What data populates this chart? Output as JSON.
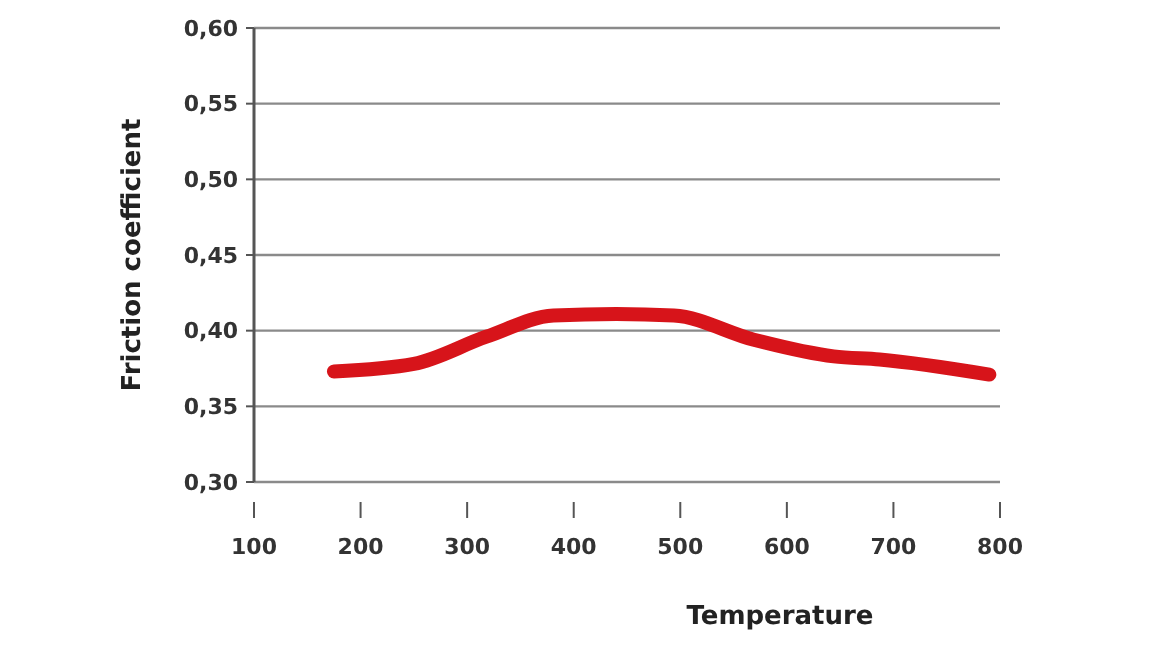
{
  "chart_data": {
    "type": "line",
    "xlabel": "Temperature",
    "ylabel": "Friction coefficient",
    "x": [
      175,
      250,
      318,
      381,
      440,
      494,
      569,
      644,
      687,
      790
    ],
    "series": [
      {
        "color": "#d7141a",
        "values": [
          0.373,
          0.378,
          0.396,
          0.41,
          0.411,
          0.41,
          0.394,
          0.383,
          0.381,
          0.371
        ]
      }
    ],
    "xlim": [
      100,
      800
    ],
    "xticks": [
      100,
      200,
      300,
      400,
      500,
      600,
      700,
      800
    ],
    "ylim": [
      0.3,
      0.6
    ],
    "yticks": [
      {
        "value": 0.3,
        "label": "0,30"
      },
      {
        "value": 0.35,
        "label": "0,35"
      },
      {
        "value": 0.4,
        "label": "0,40"
      },
      {
        "value": 0.45,
        "label": "0,45"
      },
      {
        "value": 0.5,
        "label": "0,50"
      },
      {
        "value": 0.55,
        "label": "0,55"
      },
      {
        "value": 0.6,
        "label": "0,60"
      }
    ],
    "grid": "y",
    "marker": "none",
    "line_style": "solid"
  }
}
